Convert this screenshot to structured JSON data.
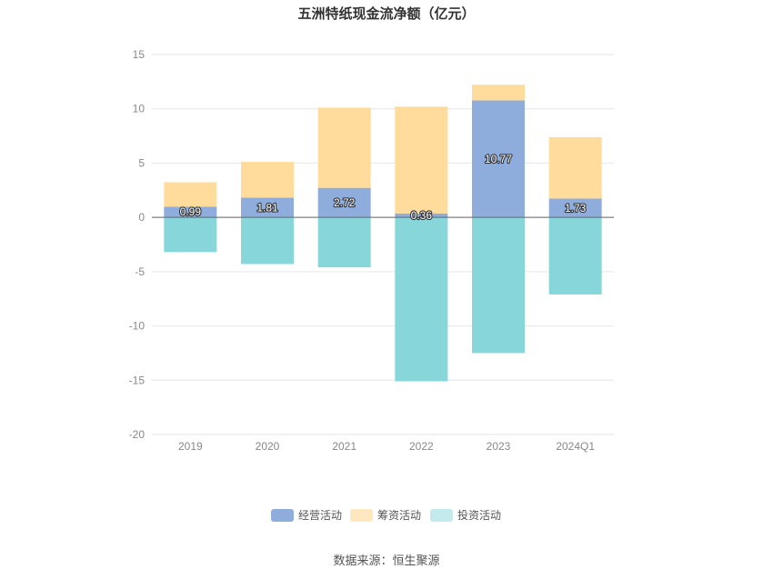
{
  "chart_data": {
    "type": "bar",
    "stacked": true,
    "title": "五洲特纸现金流净额（亿元）",
    "categories": [
      "2019",
      "2020",
      "2021",
      "2022",
      "2023",
      "2024Q1"
    ],
    "series": [
      {
        "name": "经营活动",
        "values": [
          0.99,
          1.81,
          2.72,
          0.36,
          10.77,
          1.73
        ],
        "color": "#8eaddc"
      },
      {
        "name": "筹资活动",
        "values": [
          2.25,
          3.3,
          7.39,
          9.84,
          1.45,
          5.66
        ],
        "color": "#ffdc9c"
      },
      {
        "name": "投资活动",
        "values": [
          -3.2,
          -4.3,
          -4.6,
          -15.1,
          -12.5,
          -7.1
        ],
        "color": "#87d6da"
      }
    ],
    "data_labels": [
      "0.99",
      "1.81",
      "2.72",
      "0.36",
      "10.77",
      "1.73"
    ],
    "y_ticks": [
      "15",
      "10",
      "5",
      "0",
      "-5",
      "-10",
      "-15",
      "-20"
    ],
    "ylim": [
      -20,
      15
    ],
    "legend_position": "bottom",
    "grid": true,
    "source": "数据来源：恒生聚源"
  }
}
